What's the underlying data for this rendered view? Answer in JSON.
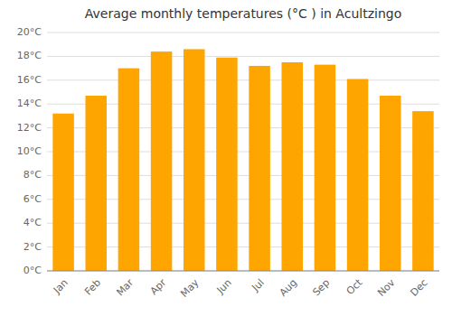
{
  "chart_data": {
    "type": "bar",
    "title": "Average monthly temperatures (°C ) in Acultzingo",
    "categories": [
      "Jan",
      "Feb",
      "Mar",
      "Apr",
      "May",
      "Jun",
      "Jul",
      "Aug",
      "Sep",
      "Oct",
      "Nov",
      "Dec"
    ],
    "values": [
      13.2,
      14.7,
      17.0,
      18.4,
      18.6,
      17.9,
      17.2,
      17.5,
      17.3,
      16.1,
      14.7,
      13.4
    ],
    "color": "#FFA500",
    "ylim": [
      0,
      20
    ],
    "yticks": [
      {
        "value": 0,
        "label": "0°C"
      },
      {
        "value": 2,
        "label": "2°C"
      },
      {
        "value": 4,
        "label": "4°C"
      },
      {
        "value": 6,
        "label": "6°C"
      },
      {
        "value": 8,
        "label": "8°C"
      },
      {
        "value": 10,
        "label": "10°C"
      },
      {
        "value": 12,
        "label": "12°C"
      },
      {
        "value": 14,
        "label": "14°C"
      },
      {
        "value": 16,
        "label": "16°C"
      },
      {
        "value": 18,
        "label": "18°C"
      },
      {
        "value": 20,
        "label": "20°C"
      }
    ],
    "grid": true
  }
}
